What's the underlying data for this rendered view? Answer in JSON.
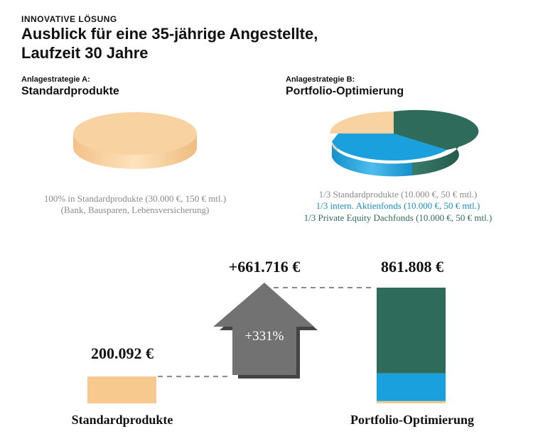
{
  "header": {
    "kicker": "INNOVATIVE LÖSUNG",
    "title_line1": "Ausblick für eine 35-jährige Angestellte,",
    "title_line2": "Laufzeit 30 Jahre"
  },
  "strategies": {
    "a": {
      "label": "Anlagestrategie A:",
      "name": "Standardprodukte",
      "desc_line1": "100% in Standardprodukte (30.000 €, 150 € mtl.)",
      "desc_line2": "(Bank, Bausparen, Lebensversicherung)"
    },
    "b": {
      "label": "Anlagestrategie B:",
      "name": "Portfolio-Optimierung",
      "desc_line1": "1/3 Standardprodukte (10.000 €, 50 € mtl.)",
      "desc_line2": "1/3 intern. Aktienfonds (10.000 €, 50 € mtl.)",
      "desc_line3": "1/3 Private Equity Dachfonds (10.000 €, 50 € mtl.)"
    }
  },
  "colors": {
    "standard": "#f7c98f",
    "aktien": "#1aa0dc",
    "private_equity": "#2f6b5b",
    "arrow": "#6b6b6b",
    "desc_gray": "#8a8a8a",
    "desc_blue": "#1a90c8",
    "desc_green": "#2f6b5b"
  },
  "chart_data": [
    {
      "type": "pie",
      "title": "Standardprodukte",
      "slices": [
        {
          "label": "Standardprodukte",
          "value": 100,
          "color": "#f7c98f"
        }
      ]
    },
    {
      "type": "pie",
      "title": "Portfolio-Optimierung",
      "slices": [
        {
          "label": "Standardprodukte",
          "value": 33.33,
          "color": "#f7c98f"
        },
        {
          "label": "intern. Aktienfonds",
          "value": 33.33,
          "color": "#1aa0dc"
        },
        {
          "label": "Private Equity Dachfonds",
          "value": 33.33,
          "color": "#2f6b5b"
        }
      ]
    },
    {
      "type": "bar",
      "categories": [
        "Standardprodukte",
        "Portfolio-Optimierung"
      ],
      "values": [
        200092,
        861808
      ],
      "value_labels": [
        "200.092 €",
        "861.808 €"
      ],
      "ylim": [
        0,
        861808
      ],
      "stack_portfolio": [
        {
          "name": "Standardprodukte",
          "share": 0.02,
          "color": "#f7c98f"
        },
        {
          "name": "Aktienfonds",
          "share": 0.24,
          "color": "#1aa0dc"
        },
        {
          "name": "Private Equity",
          "share": 0.74,
          "color": "#2f6b5b"
        }
      ],
      "difference_label": "+661.716 €",
      "percent_label": "+331%"
    }
  ]
}
